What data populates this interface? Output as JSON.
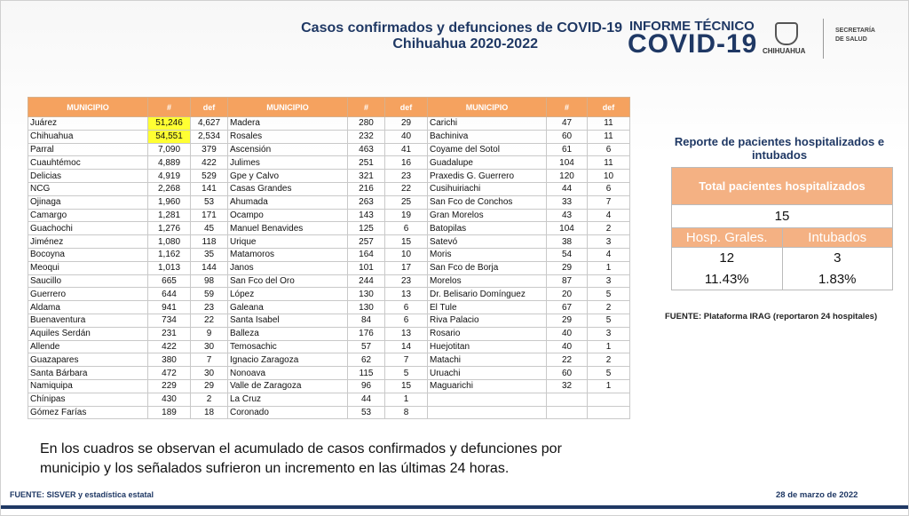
{
  "header": {
    "title_line1": "Casos confirmados y defunciones de COVID-19",
    "title_line2": "Chihuahua 2020-2022",
    "logo_line1": "INFORME TÉCNICO",
    "logo_line2": "COVID-19",
    "state": "CHIHUAHUA",
    "secretaria_line1": "SECRETARÍA",
    "secretaria_line2": "DE SALUD"
  },
  "table": {
    "columns": [
      "MUNICIPIO",
      "#",
      "def",
      "MUNICIPIO",
      "#",
      "def",
      "MUNICIPIO",
      "#",
      "def"
    ],
    "highlight_color": "#ffff33",
    "highlighted_cells": [
      [
        0,
        1
      ],
      [
        1,
        1
      ]
    ],
    "rows": [
      [
        "Juárez",
        "51,246",
        "4,627",
        "Madera",
        "280",
        "29",
        "Carichi",
        "47",
        "11"
      ],
      [
        "Chihuahua",
        "54,551",
        "2,534",
        "Rosales",
        "232",
        "40",
        "Bachiniva",
        "60",
        "11"
      ],
      [
        "Parral",
        "7,090",
        "379",
        "Ascensión",
        "463",
        "41",
        "Coyame del Sotol",
        "61",
        "6"
      ],
      [
        "Cuauhtémoc",
        "4,889",
        "422",
        "Julimes",
        "251",
        "16",
        "Guadalupe",
        "104",
        "11"
      ],
      [
        "Delicias",
        "4,919",
        "529",
        "Gpe y Calvo",
        "321",
        "23",
        "Praxedis G. Guerrero",
        "120",
        "10"
      ],
      [
        "NCG",
        "2,268",
        "141",
        "Casas Grandes",
        "216",
        "22",
        "Cusihuiriachi",
        "44",
        "6"
      ],
      [
        "Ojinaga",
        "1,960",
        "53",
        "Ahumada",
        "263",
        "25",
        "San Fco de Conchos",
        "33",
        "7"
      ],
      [
        "Camargo",
        "1,281",
        "171",
        "Ocampo",
        "143",
        "19",
        "Gran Morelos",
        "43",
        "4"
      ],
      [
        "Guachochi",
        "1,276",
        "45",
        "Manuel Benavides",
        "125",
        "6",
        "Batopilas",
        "104",
        "2"
      ],
      [
        "Jiménez",
        "1,080",
        "118",
        "Urique",
        "257",
        "15",
        "Satevó",
        "38",
        "3"
      ],
      [
        "Bocoyna",
        "1,162",
        "35",
        "Matamoros",
        "164",
        "10",
        "Moris",
        "54",
        "4"
      ],
      [
        "Meoqui",
        "1,013",
        "144",
        "Janos",
        "101",
        "17",
        "San Fco de Borja",
        "29",
        "1"
      ],
      [
        "Saucillo",
        "665",
        "98",
        "San Fco del Oro",
        "244",
        "23",
        "Morelos",
        "87",
        "3"
      ],
      [
        "Guerrero",
        "644",
        "59",
        "López",
        "130",
        "13",
        "Dr. Belisario Domínguez",
        "20",
        "5"
      ],
      [
        "Aldama",
        "941",
        "23",
        "Galeana",
        "130",
        "6",
        "El Tule",
        "67",
        "2"
      ],
      [
        "Buenaventura",
        "734",
        "22",
        "Santa Isabel",
        "84",
        "6",
        "Riva Palacio",
        "29",
        "5"
      ],
      [
        "Aquiles Serdán",
        "231",
        "9",
        "Balleza",
        "176",
        "13",
        "Rosario",
        "40",
        "3"
      ],
      [
        "Allende",
        "422",
        "30",
        "Temosachic",
        "57",
        "14",
        "Huejotitan",
        "40",
        "1"
      ],
      [
        "Guazapares",
        "380",
        "7",
        "Ignacio Zaragoza",
        "62",
        "7",
        "Matachi",
        "22",
        "2"
      ],
      [
        "Santa Bárbara",
        "472",
        "30",
        "Nonoava",
        "115",
        "5",
        "Uruachi",
        "60",
        "5"
      ],
      [
        "Namiquipa",
        "229",
        "29",
        "Valle de Zaragoza",
        "96",
        "15",
        "Maguarichi",
        "32",
        "1"
      ],
      [
        "Chínipas",
        "430",
        "2",
        "La Cruz",
        "44",
        "1",
        null,
        null,
        null
      ],
      [
        "Gómez Farías",
        "189",
        "18",
        "Coronado",
        "53",
        "8",
        null,
        null,
        null
      ]
    ]
  },
  "report": {
    "title": "Reporte de pacientes hospitalizados e intubados",
    "total_label": "Total pacientes hospitalizados",
    "total": "15",
    "col1_label": "Hosp. Grales.",
    "col2_label": "Intubados",
    "col1_count": "12",
    "col2_count": "3",
    "col1_pct": "11.43%",
    "col2_pct": "1.83%",
    "source": "FUENTE: Plataforma IRAG (reportaron 24 hospitales)"
  },
  "note": "En los cuadros se observan el acumulado de casos confirmados y defunciones por municipio y los señalados sufrieron un incremento en las últimas 24 horas.",
  "footer": {
    "source": "FUENTE: SISVER y estadística estatal",
    "date": "28 de marzo de 2022"
  }
}
